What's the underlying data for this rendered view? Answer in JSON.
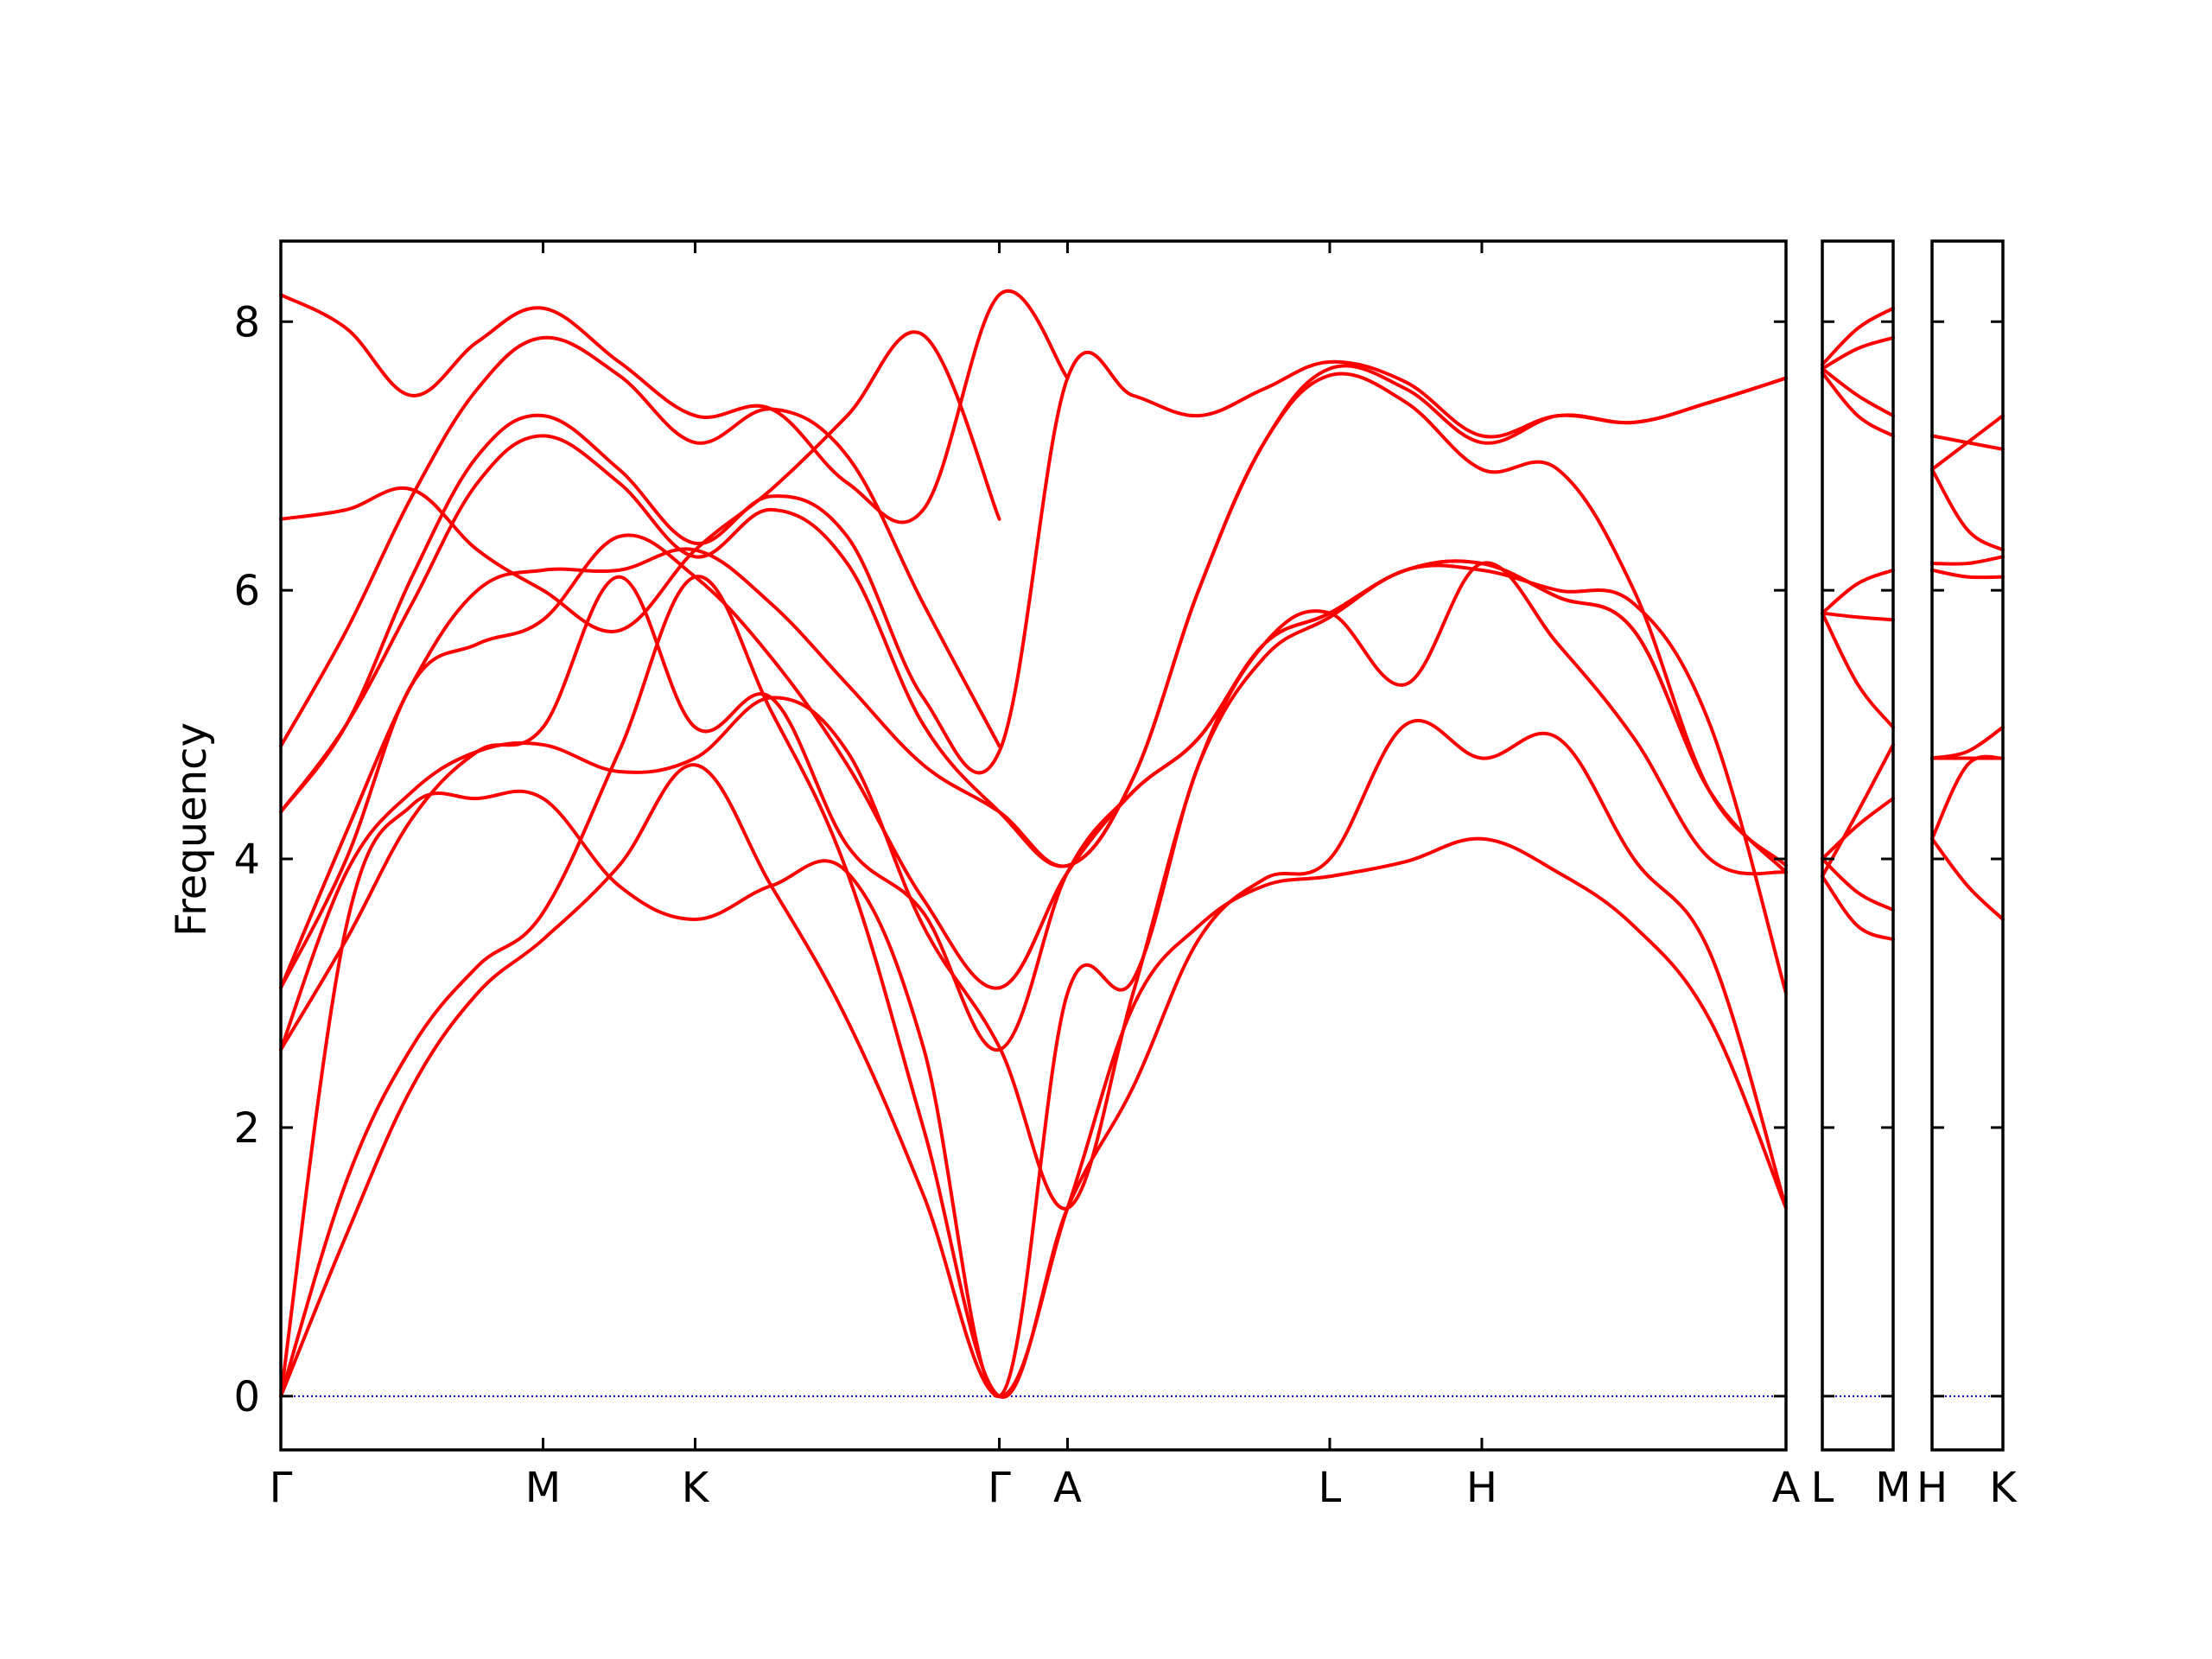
{
  "chart_data": {
    "type": "line",
    "ylabel": "Frequency",
    "ylim": [
      -0.4,
      8.6
    ],
    "yticks": [
      0,
      2,
      4,
      6,
      8
    ],
    "colors": {
      "bands": "#ff0000",
      "zero_line": "#0000cc",
      "axes": "#000000"
    },
    "panels": [
      {
        "id": "main",
        "labels": [
          {
            "text": "Γ",
            "x": 0.0
          },
          {
            "text": "M",
            "x": 1.0
          },
          {
            "text": "K",
            "x": 1.58
          },
          {
            "text": "Γ",
            "x": 2.74
          },
          {
            "text": "A",
            "x": 3.0
          },
          {
            "text": "L",
            "x": 4.0
          },
          {
            "text": "H",
            "x": 4.58
          },
          {
            "text": "A",
            "x": 5.74
          }
        ],
        "xlim": [
          0,
          5.74
        ],
        "series": [
          {
            "x": [
              0,
              0.25,
              0.5,
              0.75,
              1.0,
              1.29,
              1.58,
              1.87,
              2.16,
              2.45,
              2.74,
              3.0,
              3.25,
              3.5,
              3.75,
              4.0,
              4.29,
              4.58,
              4.87,
              5.16,
              5.45,
              5.74
            ],
            "y": [
              0,
              1.2,
              2.3,
              3.0,
              3.4,
              3.95,
              4.7,
              3.8,
              2.8,
              1.5,
              0,
              1.4,
              2.9,
              3.5,
              3.8,
              3.87,
              3.98,
              4.15,
              3.9,
              3.5,
              2.8,
              1.4
            ]
          },
          {
            "x": [
              0,
              0.25,
              0.5,
              0.75,
              1.0,
              1.29,
              1.58,
              1.87,
              2.16,
              2.45,
              2.74,
              3.0,
              3.25,
              3.5,
              3.75,
              4.0,
              4.29,
              4.58,
              4.87,
              5.16,
              5.45,
              5.74
            ],
            "y": [
              0,
              1.6,
              2.6,
              3.2,
              3.6,
              4.8,
              6.1,
              5.1,
              3.9,
              2.0,
              0,
              1.4,
              2.3,
              3.4,
              3.85,
              4.0,
              5.0,
              4.75,
              4.9,
              4.0,
              3.3,
              1.4
            ]
          },
          {
            "x": [
              0,
              0.25,
              0.5,
              0.75,
              1.0,
              1.29,
              1.58,
              1.87,
              2.16,
              2.45,
              2.74,
              3.0,
              3.25,
              3.5,
              3.75,
              4.0,
              4.29,
              4.58,
              4.87,
              5.16,
              5.45,
              5.74
            ],
            "y": [
              0,
              3.5,
              4.4,
              4.45,
              4.45,
              3.8,
              3.55,
              3.8,
              3.9,
              2.6,
              0,
              3.0,
              3.1,
              4.7,
              5.5,
              5.8,
              6.15,
              6.15,
              6.0,
              5.9,
              5.0,
              3.0
            ]
          },
          {
            "x": [
              0,
              0.25,
              0.5,
              0.75,
              1.0,
              1.29,
              1.58,
              1.87,
              2.16,
              2.45,
              2.74,
              3.0,
              3.25,
              3.5,
              3.75,
              4.0,
              4.29,
              4.58,
              4.87,
              5.16,
              5.45,
              5.74
            ],
            "y": [
              2.58,
              3.9,
              4.5,
              4.8,
              4.85,
              4.65,
              4.75,
              5.2,
              4.8,
              3.5,
              2.6,
              1.4,
              3.0,
              4.7,
              5.6,
              5.83,
              5.3,
              6.2,
              5.6,
              4.9,
              4.0,
              3.9
            ]
          },
          {
            "x": [
              0,
              0.25,
              0.5,
              0.75,
              1.0,
              1.29,
              1.58,
              1.87,
              2.16,
              2.45,
              2.74,
              3.0,
              3.25,
              3.5,
              3.75,
              4.0,
              4.29,
              4.58,
              4.87,
              5.16,
              5.45,
              5.74
            ],
            "y": [
              2.58,
              3.4,
              4.3,
              4.8,
              4.98,
              6.1,
              4.98,
              5.2,
              4.1,
              3.6,
              2.58,
              3.9,
              4.5,
              4.9,
              5.6,
              5.83,
              6.15,
              6.2,
              5.95,
              5.7,
              4.5,
              3.9
            ]
          },
          {
            "x": [
              0,
              0.25,
              0.5,
              0.75,
              1.0,
              1.29,
              1.58,
              1.87,
              2.16,
              2.45,
              2.74,
              3.0,
              3.25,
              3.5,
              3.75,
              4.0,
              4.29,
              4.58,
              4.87,
              5.16,
              5.45,
              5.74
            ],
            "y": [
              3.04,
              4.0,
              5.3,
              5.6,
              5.78,
              6.4,
              6.1,
              5.5,
              4.7,
              3.7,
              3.04,
              3.9,
              4.5,
              4.9,
              5.6,
              5.83,
              6.15,
              6.2,
              5.95,
              5.7,
              4.5,
              3.9
            ]
          },
          {
            "x": [
              0,
              0.25,
              0.5,
              0.75,
              1.0,
              1.29,
              1.58,
              1.87,
              2.16,
              2.45,
              2.74,
              3.0,
              3.25,
              3.5,
              3.75,
              4.0,
              4.29,
              4.58,
              4.87,
              5.16,
              5.45,
              5.74
            ],
            "y": [
              3.04,
              4.2,
              5.3,
              6.0,
              6.15,
              6.15,
              6.3,
              5.9,
              5.3,
              4.7,
              4.35,
              3.95,
              4.6,
              6.0,
              7.1,
              7.6,
              7.4,
              6.9,
              6.9,
              6.0,
              4.5,
              3.95
            ]
          },
          {
            "x": [
              0,
              0.25,
              0.5,
              0.75,
              1.0,
              1.29,
              1.58,
              1.87,
              2.16,
              2.45,
              2.74,
              3.0,
              3.25,
              3.5,
              3.75,
              4.0,
              4.29,
              4.58,
              4.87,
              5.16,
              5.45,
              5.74
            ],
            "y": [
              4.35,
              5.0,
              5.9,
              6.8,
              7.15,
              6.8,
              6.25,
              6.6,
              6.2,
              5.0,
              4.35,
              3.95,
              4.6,
              6.0,
              7.1,
              7.65,
              7.5,
              7.1,
              7.3,
              7.25,
              7.4,
              7.58
            ]
          },
          {
            "x": [
              0,
              0.25,
              0.5,
              0.75,
              1.0,
              1.29,
              1.58,
              1.87,
              2.16,
              2.45,
              2.74,
              3.0,
              3.25,
              3.5,
              3.75,
              4.0,
              4.29,
              4.58,
              4.87,
              5.16,
              5.45,
              5.74
            ],
            "y": [
              4.35,
              5.0,
              6.1,
              7.0,
              7.3,
              6.9,
              6.35,
              6.7,
              6.4,
              5.2,
              4.8,
              7.58,
              7.45,
              7.3,
              7.5,
              7.7,
              7.55,
              7.15,
              7.3,
              7.25,
              7.4,
              7.58
            ]
          },
          {
            "x": [
              0,
              0.25,
              0.5,
              0.75,
              1.0,
              1.29,
              1.58,
              1.87,
              2.16,
              2.45,
              2.74
            ],
            "y": [
              4.84,
              5.7,
              6.7,
              7.5,
              7.88,
              7.6,
              7.1,
              7.35,
              7.0,
              5.9,
              4.84
            ]
          },
          {
            "x": [
              0,
              0.25,
              0.5,
              0.75,
              1.0,
              1.29,
              1.58,
              1.87,
              2.16,
              2.45,
              2.74
            ],
            "y": [
              6.53,
              6.6,
              6.75,
              6.3,
              6.0,
              5.7,
              6.3,
              6.75,
              7.3,
              7.9,
              6.53
            ]
          },
          {
            "x": [
              0,
              0.25,
              0.5,
              0.75,
              1.0,
              1.29,
              1.58,
              1.87,
              2.16,
              2.45,
              2.74,
              3.0
            ],
            "y": [
              8.2,
              7.95,
              7.45,
              7.85,
              8.1,
              7.7,
              7.3,
              7.35,
              6.8,
              6.6,
              8.2,
              7.58
            ]
          }
        ]
      },
      {
        "id": "LM",
        "labels": [
          {
            "text": "L",
            "x": 0.0
          },
          {
            "text": "M",
            "x": 1.0
          }
        ],
        "xlim": [
          0,
          1
        ],
        "series": [
          {
            "x": [
              0,
              0.5,
              1
            ],
            "y": [
              3.87,
              3.5,
              3.4
            ]
          },
          {
            "x": [
              0,
              0.5,
              1
            ],
            "y": [
              4.0,
              3.75,
              3.62
            ]
          },
          {
            "x": [
              0,
              0.5,
              1
            ],
            "y": [
              4.0,
              4.25,
              4.45
            ]
          },
          {
            "x": [
              0,
              0.5,
              1
            ],
            "y": [
              3.87,
              4.35,
              4.85
            ]
          },
          {
            "x": [
              0,
              0.5,
              1
            ],
            "y": [
              5.83,
              5.3,
              4.98
            ]
          },
          {
            "x": [
              0,
              0.5,
              1
            ],
            "y": [
              5.83,
              5.8,
              5.78
            ]
          },
          {
            "x": [
              0,
              0.5,
              1
            ],
            "y": [
              5.83,
              6.05,
              6.15
            ]
          },
          {
            "x": [
              0,
              0.5,
              1
            ],
            "y": [
              7.62,
              7.3,
              7.15
            ]
          },
          {
            "x": [
              0,
              0.5,
              1
            ],
            "y": [
              7.65,
              7.45,
              7.3
            ]
          },
          {
            "x": [
              0,
              0.5,
              1
            ],
            "y": [
              7.65,
              7.8,
              7.88
            ]
          },
          {
            "x": [
              0,
              0.5,
              1
            ],
            "y": [
              7.68,
              7.95,
              8.1
            ]
          }
        ]
      },
      {
        "id": "HK",
        "labels": [
          {
            "text": "H",
            "x": 0.0
          },
          {
            "text": "K",
            "x": 1.0
          }
        ],
        "xlim": [
          0,
          1
        ],
        "series": [
          {
            "x": [
              0,
              0.5,
              1
            ],
            "y": [
              4.15,
              3.8,
              3.55
            ]
          },
          {
            "x": [
              0,
              0.5,
              1
            ],
            "y": [
              4.15,
              4.7,
              4.75
            ]
          },
          {
            "x": [
              0,
              0.5,
              1
            ],
            "y": [
              4.75,
              4.75,
              4.75
            ]
          },
          {
            "x": [
              0,
              0.5,
              1
            ],
            "y": [
              4.75,
              4.8,
              4.98
            ]
          },
          {
            "x": [
              0,
              0.5,
              1
            ],
            "y": [
              6.15,
              6.1,
              6.1
            ]
          },
          {
            "x": [
              0,
              0.5,
              1
            ],
            "y": [
              6.2,
              6.2,
              6.25
            ]
          },
          {
            "x": [
              0,
              0.5,
              1
            ],
            "y": [
              6.9,
              6.45,
              6.3
            ]
          },
          {
            "x": [
              0,
              0.5,
              1
            ],
            "y": [
              6.9,
              7.1,
              7.3
            ]
          },
          {
            "x": [
              0,
              0.5,
              1
            ],
            "y": [
              7.15,
              7.1,
              7.05
            ]
          }
        ]
      }
    ]
  }
}
